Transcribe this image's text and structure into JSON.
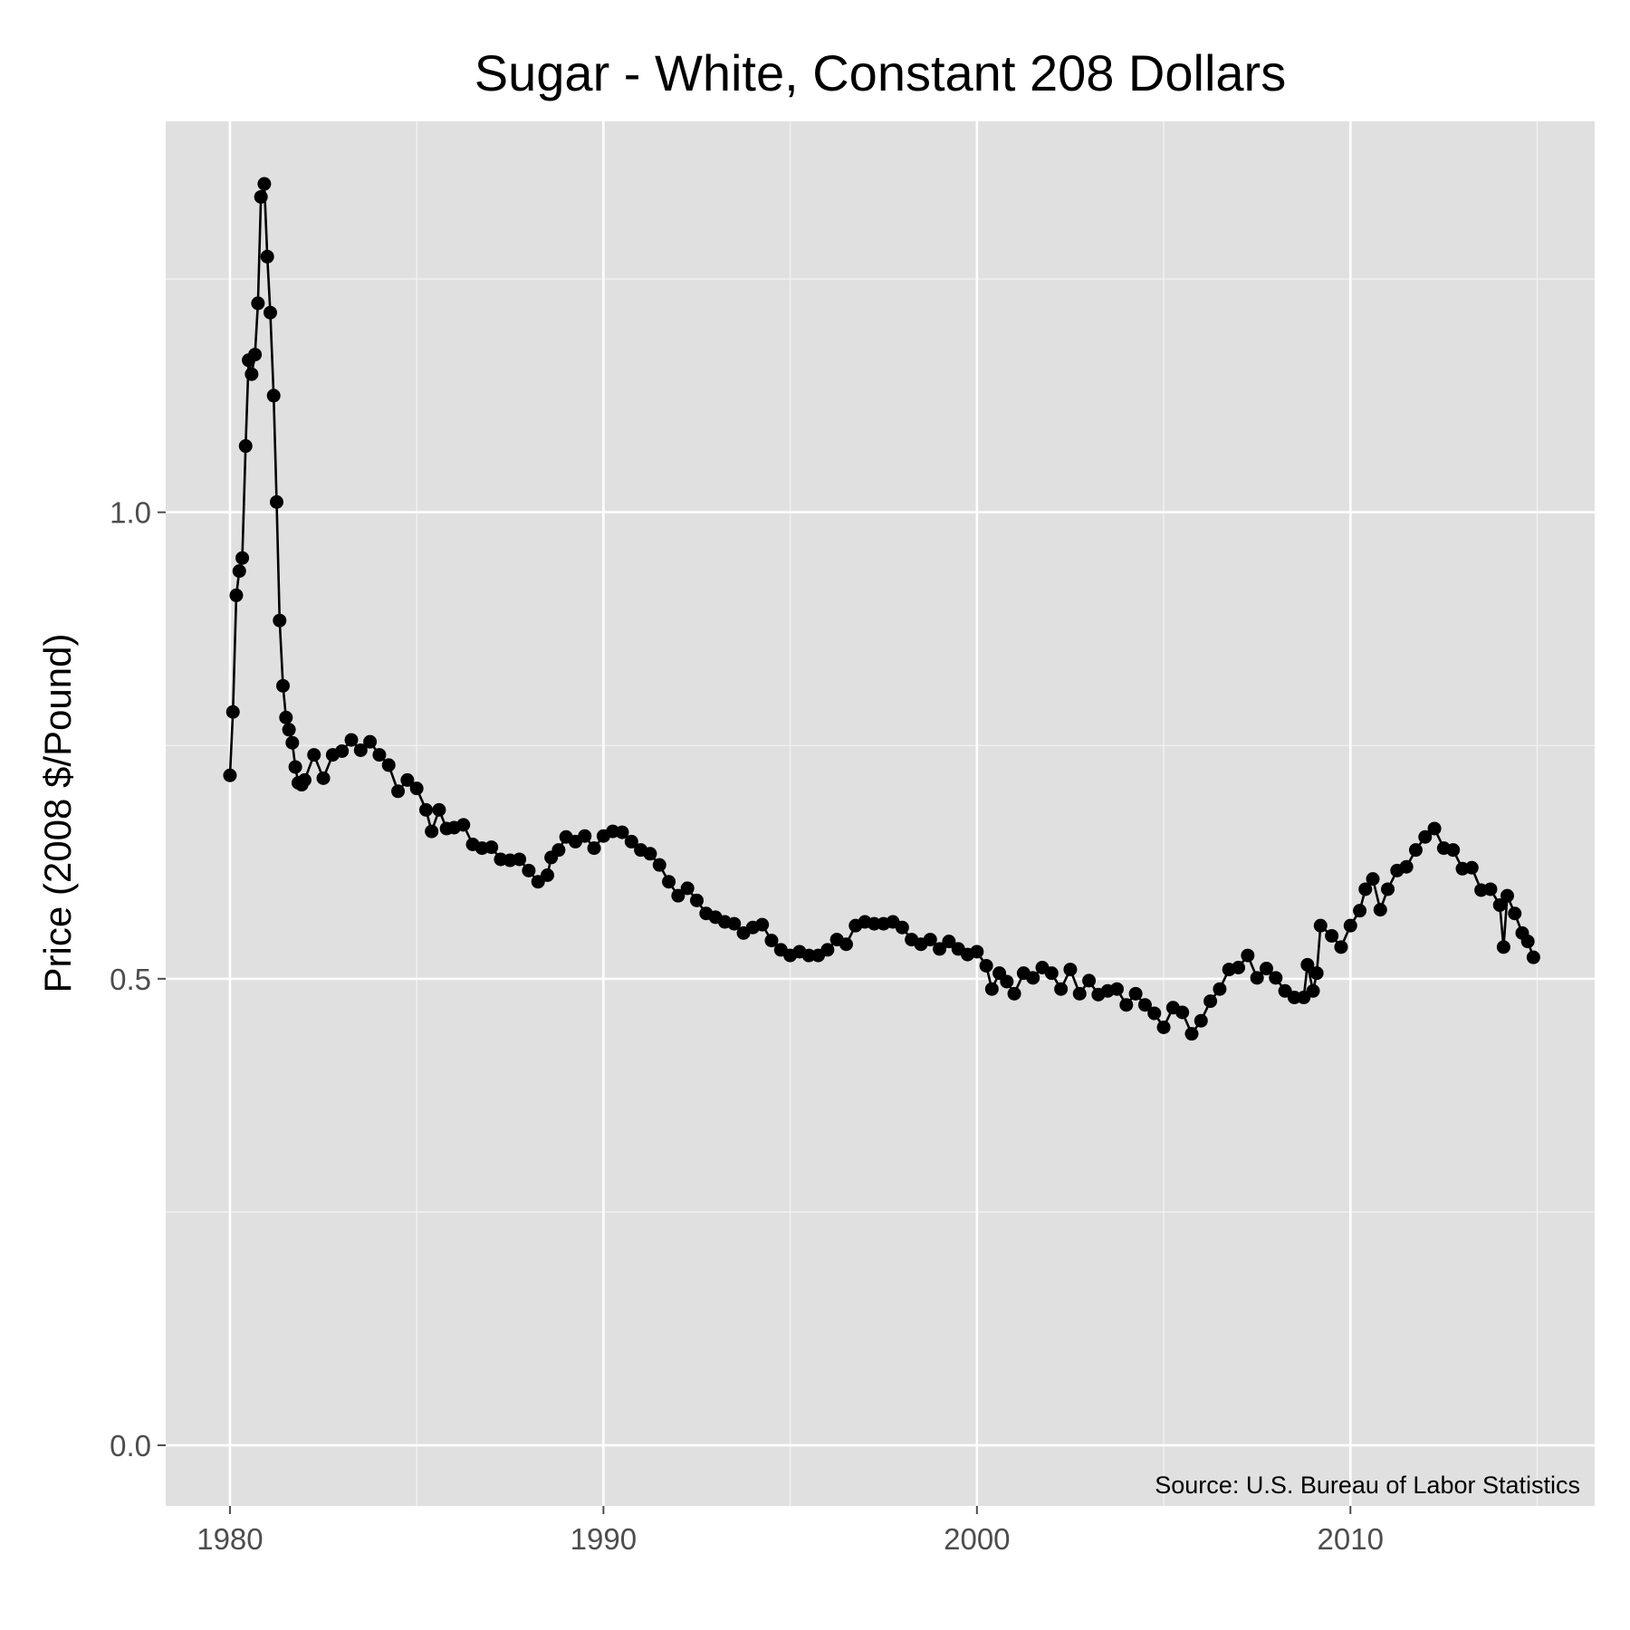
{
  "chart_data": {
    "type": "line",
    "title": "Sugar - White, Constant 208 Dollars",
    "y_label": "Price (2008 $/Pound)",
    "annotation": "Source:  U.S. Bureau of Labor Statistics",
    "x": [
      1980.0,
      1980.08,
      1980.17,
      1980.25,
      1980.33,
      1980.42,
      1980.5,
      1980.58,
      1980.67,
      1980.75,
      1980.83,
      1980.92,
      1981.0,
      1981.08,
      1981.17,
      1981.25,
      1981.33,
      1981.42,
      1981.5,
      1981.58,
      1981.67,
      1981.75,
      1981.83,
      1981.92,
      1982.0,
      1982.25,
      1982.5,
      1982.75,
      1983.0,
      1983.25,
      1983.5,
      1983.75,
      1984.0,
      1984.25,
      1984.5,
      1984.75,
      1985.0,
      1985.25,
      1985.4,
      1985.6,
      1985.8,
      1986.0,
      1986.25,
      1986.5,
      1986.75,
      1987.0,
      1987.25,
      1987.5,
      1987.75,
      1988.0,
      1988.25,
      1988.5,
      1988.6,
      1988.8,
      1989.0,
      1989.25,
      1989.5,
      1989.75,
      1990.0,
      1990.25,
      1990.5,
      1990.75,
      1991.0,
      1991.25,
      1991.5,
      1991.75,
      1992.0,
      1992.25,
      1992.5,
      1992.75,
      1993.0,
      1993.25,
      1993.5,
      1993.75,
      1994.0,
      1994.25,
      1994.5,
      1994.75,
      1995.0,
      1995.25,
      1995.5,
      1995.75,
      1996.0,
      1996.25,
      1996.5,
      1996.75,
      1997.0,
      1997.25,
      1997.5,
      1997.75,
      1998.0,
      1998.25,
      1998.5,
      1998.75,
      1999.0,
      1999.25,
      1999.5,
      1999.75,
      2000.0,
      2000.25,
      2000.4,
      2000.6,
      2000.8,
      2001.0,
      2001.25,
      2001.5,
      2001.75,
      2002.0,
      2002.25,
      2002.5,
      2002.75,
      2003.0,
      2003.25,
      2003.5,
      2003.75,
      2004.0,
      2004.25,
      2004.5,
      2004.75,
      2005.0,
      2005.25,
      2005.5,
      2005.75,
      2006.0,
      2006.25,
      2006.5,
      2006.75,
      2007.0,
      2007.25,
      2007.5,
      2007.75,
      2008.0,
      2008.25,
      2008.5,
      2008.75,
      2008.85,
      2009.0,
      2009.1,
      2009.2,
      2009.5,
      2009.75,
      2010.0,
      2010.25,
      2010.4,
      2010.6,
      2010.8,
      2011.0,
      2011.25,
      2011.5,
      2011.75,
      2012.0,
      2012.25,
      2012.5,
      2012.75,
      2013.0,
      2013.25,
      2013.5,
      2013.75,
      2014.0,
      2014.1,
      2014.2,
      2014.4,
      2014.6,
      2014.75,
      2014.9
    ],
    "series": [
      {
        "color": "#000000",
        "values": [
          0.718,
          0.786,
          0.911,
          0.937,
          0.951,
          1.071,
          1.163,
          1.148,
          1.169,
          1.224,
          1.338,
          1.352,
          1.274,
          1.214,
          1.125,
          1.011,
          0.884,
          0.814,
          0.78,
          0.767,
          0.753,
          0.727,
          0.71,
          0.708,
          0.713,
          0.74,
          0.715,
          0.74,
          0.744,
          0.756,
          0.745,
          0.754,
          0.74,
          0.729,
          0.701,
          0.713,
          0.704,
          0.681,
          0.658,
          0.681,
          0.661,
          0.662,
          0.665,
          0.644,
          0.64,
          0.641,
          0.628,
          0.627,
          0.628,
          0.616,
          0.604,
          0.611,
          0.63,
          0.638,
          0.652,
          0.647,
          0.653,
          0.64,
          0.653,
          0.658,
          0.657,
          0.647,
          0.638,
          0.634,
          0.622,
          0.604,
          0.589,
          0.597,
          0.584,
          0.57,
          0.566,
          0.561,
          0.559,
          0.549,
          0.555,
          0.558,
          0.541,
          0.531,
          0.525,
          0.529,
          0.525,
          0.525,
          0.531,
          0.542,
          0.537,
          0.557,
          0.561,
          0.559,
          0.559,
          0.561,
          0.555,
          0.542,
          0.537,
          0.542,
          0.532,
          0.54,
          0.532,
          0.526,
          0.529,
          0.514,
          0.489,
          0.506,
          0.497,
          0.484,
          0.506,
          0.501,
          0.512,
          0.506,
          0.489,
          0.51,
          0.484,
          0.498,
          0.483,
          0.487,
          0.489,
          0.472,
          0.484,
          0.472,
          0.463,
          0.448,
          0.469,
          0.464,
          0.441,
          0.455,
          0.476,
          0.489,
          0.51,
          0.512,
          0.525,
          0.501,
          0.511,
          0.501,
          0.487,
          0.48,
          0.48,
          0.515,
          0.487,
          0.506,
          0.557,
          0.546,
          0.534,
          0.557,
          0.573,
          0.596,
          0.607,
          0.574,
          0.596,
          0.616,
          0.62,
          0.638,
          0.652,
          0.661,
          0.64,
          0.638,
          0.618,
          0.619,
          0.595,
          0.596,
          0.579,
          0.534,
          0.589,
          0.57,
          0.549,
          0.54,
          0.523
        ]
      }
    ],
    "xlim": [
      1978.28,
      2016.54
    ],
    "xticks": [
      1980,
      1990,
      2000,
      2010
    ],
    "xminor": [
      1985,
      1995,
      2005,
      2015
    ],
    "ylim": [
      -0.065,
      1.419
    ],
    "yticks": [
      {
        "value": 0,
        "label": "0.0"
      },
      0.5,
      {
        "value": 1,
        "label": "1.0"
      }
    ],
    "yminor": [
      0.25,
      0.75,
      1.25
    ],
    "grid": true
  }
}
